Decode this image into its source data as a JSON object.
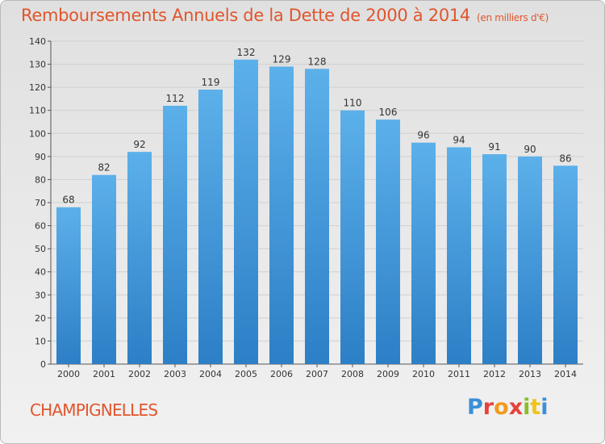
{
  "page": {
    "title": "Remboursements Annuels de la Dette de 2000 à 2014",
    "subtitle": "(en milliers d'€)",
    "commune": "CHAMPIGNELLES",
    "logo": "Proxiti"
  },
  "chart_data": {
    "type": "bar",
    "title": "Remboursements Annuels de la Dette de 2000 à 2014",
    "subtitle": "(en milliers d'€)",
    "xlabel": "",
    "ylabel": "",
    "categories": [
      "2000",
      "2001",
      "2002",
      "2003",
      "2004",
      "2005",
      "2006",
      "2007",
      "2008",
      "2009",
      "2010",
      "2011",
      "2012",
      "2013",
      "2014"
    ],
    "values": [
      68,
      82,
      92,
      112,
      119,
      132,
      129,
      128,
      110,
      106,
      96,
      94,
      91,
      90,
      86
    ],
    "ylim": [
      0,
      140
    ],
    "yticks": [
      0,
      10,
      20,
      30,
      40,
      50,
      60,
      70,
      80,
      90,
      100,
      110,
      120,
      130,
      140
    ],
    "grid": true,
    "colors": {
      "bar": "#3d8fd6",
      "bar_light": "#5aaee9",
      "title": "#e0552d",
      "grid": "#d0d0d0"
    }
  },
  "logo_colors": [
    "#3a8fd8",
    "#e8413a",
    "#f29a1f",
    "#e8413a",
    "#8cbd2a",
    "#f2c21a",
    "#3a8fd8"
  ]
}
